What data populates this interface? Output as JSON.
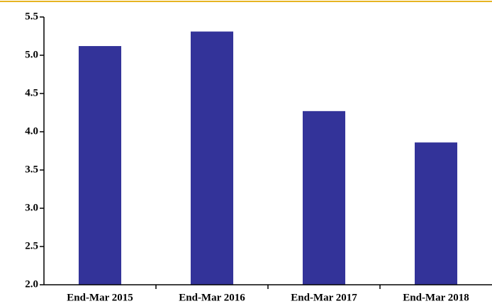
{
  "chart_data": {
    "type": "bar",
    "categories": [
      "End-Mar 2015",
      "End-Mar 2016",
      "End-Mar 2017",
      "End-Mar 2018"
    ],
    "values": [
      5.12,
      5.31,
      4.27,
      3.86
    ],
    "color": "#333399",
    "ylim": [
      2.0,
      5.5
    ],
    "yticks": [
      {
        "value": 2.0,
        "label": "2.0"
      },
      {
        "value": 2.5,
        "label": "2.5"
      },
      {
        "value": 3.0,
        "label": "3.0"
      },
      {
        "value": 3.5,
        "label": "3.5"
      },
      {
        "value": 4.0,
        "label": "4.0"
      },
      {
        "value": 4.5,
        "label": "4.5"
      },
      {
        "value": 5.0,
        "label": "5.0"
      },
      {
        "value": 5.5,
        "label": "5.5"
      }
    ],
    "grid": false
  }
}
